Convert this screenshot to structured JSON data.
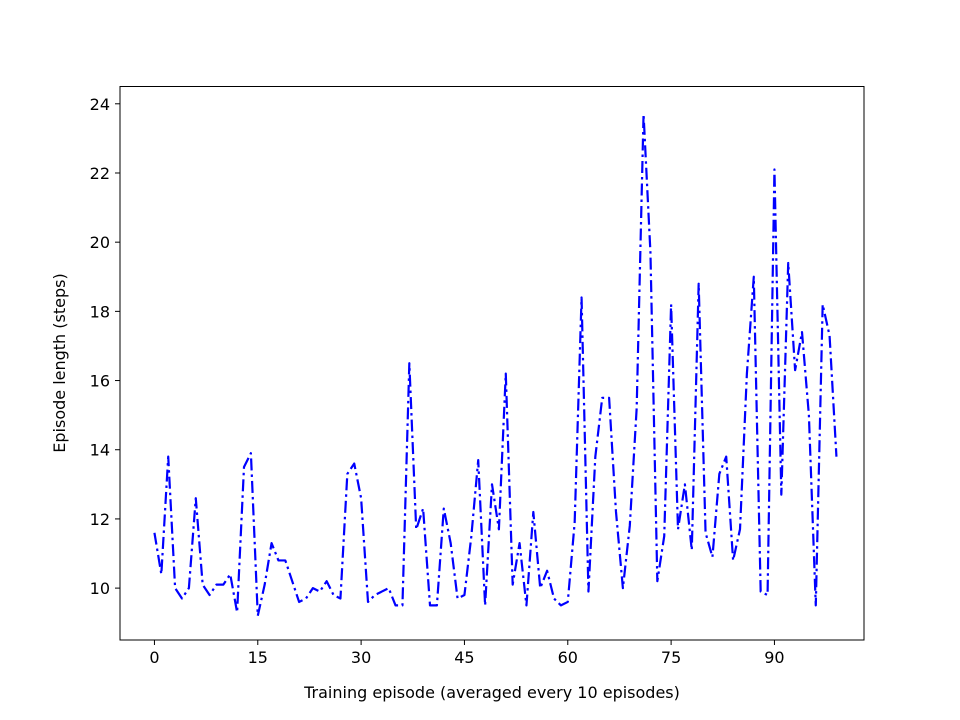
{
  "chart_data": {
    "type": "line",
    "title": "",
    "xlabel": "Training episode (averaged every 10 episodes)",
    "ylabel": "Episode length (steps)",
    "xlim": [
      -5,
      103
    ],
    "ylim": [
      8.5,
      24.5
    ],
    "xticks": [
      0,
      15,
      30,
      45,
      60,
      75,
      90
    ],
    "xtick_labels": [
      "0",
      "15",
      "30",
      "45",
      "60",
      "75",
      "90"
    ],
    "yticks": [
      10,
      12,
      14,
      16,
      18,
      20,
      22,
      24
    ],
    "ytick_labels": [
      "10",
      "12",
      "14",
      "16",
      "18",
      "20",
      "22",
      "24"
    ],
    "grid": false,
    "line_style": "dash-dot",
    "series": [
      {
        "color": "#0000ff",
        "x": [
          0,
          1,
          2,
          3,
          4,
          5,
          6,
          7,
          8,
          9,
          10,
          11,
          12,
          13,
          14,
          15,
          16,
          17,
          18,
          19,
          20,
          21,
          22,
          23,
          24,
          25,
          26,
          27,
          28,
          29,
          30,
          31,
          32,
          33,
          34,
          35,
          36,
          37,
          38,
          39,
          40,
          41,
          42,
          43,
          44,
          45,
          46,
          47,
          48,
          49,
          50,
          51,
          52,
          53,
          54,
          55,
          56,
          57,
          58,
          59,
          60,
          61,
          62,
          63,
          64,
          65,
          66,
          67,
          68,
          69,
          70,
          71,
          72,
          73,
          74,
          75,
          76,
          77,
          78,
          79,
          80,
          81,
          82,
          83,
          84,
          85,
          86,
          87,
          88,
          89,
          90,
          91,
          92,
          93,
          94,
          95,
          96,
          97,
          98,
          99
        ],
        "values": [
          11.6,
          10.4,
          13.8,
          10.0,
          9.7,
          10.0,
          12.6,
          10.1,
          9.8,
          10.1,
          10.1,
          10.4,
          9.3,
          13.5,
          13.9,
          9.2,
          10.1,
          11.3,
          10.8,
          10.8,
          10.2,
          9.6,
          9.7,
          10.0,
          9.9,
          10.2,
          9.8,
          9.7,
          13.3,
          13.6,
          12.6,
          9.6,
          9.8,
          9.9,
          10.0,
          9.5,
          9.5,
          16.5,
          11.7,
          12.3,
          9.5,
          9.5,
          12.3,
          11.3,
          9.7,
          9.8,
          11.5,
          13.7,
          9.5,
          13.0,
          11.7,
          16.2,
          10.1,
          11.3,
          9.5,
          12.2,
          10.0,
          10.5,
          9.7,
          9.5,
          9.6,
          11.9,
          18.4,
          9.9,
          13.8,
          15.5,
          15.5,
          12.2,
          10.0,
          11.8,
          15.2,
          23.7,
          19.7,
          10.2,
          11.5,
          18.2,
          11.7,
          13.0,
          11.1,
          18.8,
          11.6,
          10.9,
          13.3,
          13.8,
          10.8,
          11.7,
          16.2,
          19.0,
          9.9,
          9.8,
          22.1,
          12.7,
          19.4,
          16.3,
          17.4,
          15.0,
          9.5,
          18.2,
          17.3,
          13.8
        ]
      }
    ]
  }
}
